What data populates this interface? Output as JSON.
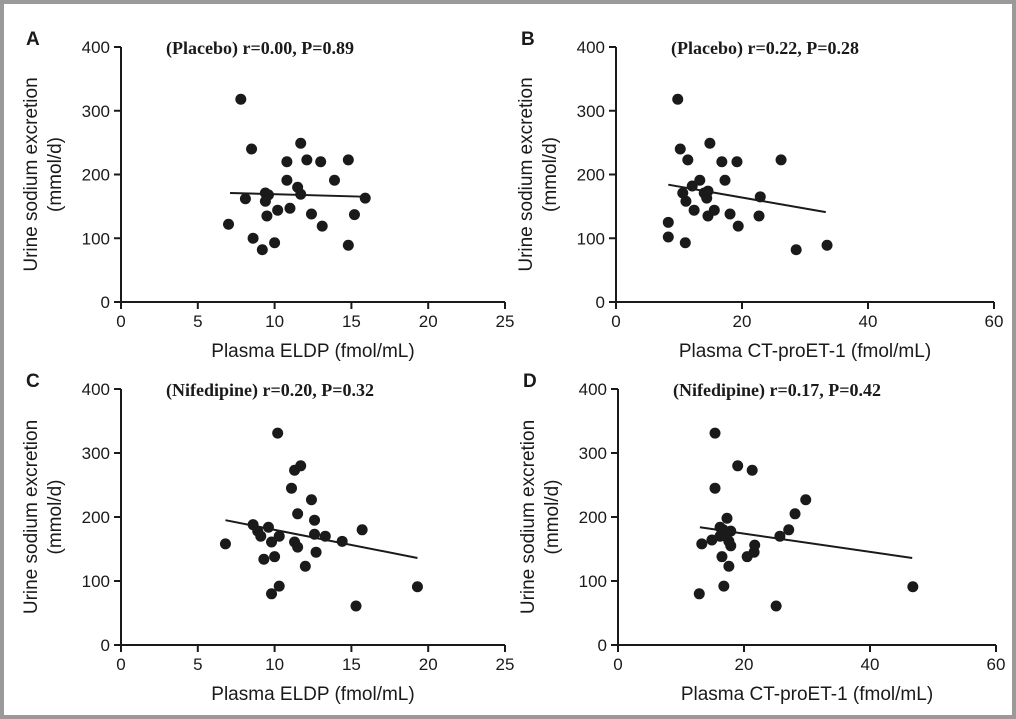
{
  "chart_data": [
    {
      "type": "scatter",
      "panel": "A",
      "annotation": "(Placebo) r=0.00, P=0.89",
      "xlabel": "Plasma ELDP (fmol/mL)",
      "ylabel": [
        "Urine sodium excretion",
        "(mmol/d)"
      ],
      "xlim": [
        0,
        25
      ],
      "ylim": [
        0,
        400
      ],
      "xticks": [
        0,
        5,
        10,
        15,
        20,
        25
      ],
      "yticks": [
        0,
        100,
        200,
        300,
        400
      ],
      "color": "#1a1a1a",
      "x": [
        7.8,
        7.0,
        8.1,
        8.5,
        8.6,
        9.2,
        9.4,
        9.4,
        9.5,
        9.6,
        10.0,
        10.2,
        10.8,
        10.8,
        11.0,
        11.5,
        11.7,
        11.7,
        12.1,
        12.4,
        13.0,
        13.1,
        13.9,
        14.8,
        14.8,
        15.2,
        15.9
      ],
      "values": [
        318,
        122,
        162,
        240,
        100,
        82,
        171,
        158,
        135,
        168,
        93,
        144,
        220,
        191,
        147,
        180,
        249,
        169,
        223,
        138,
        220,
        119,
        191,
        223,
        89,
        137,
        163
      ],
      "trend": {
        "x": [
          7.1,
          16.1
        ],
        "y": [
          171,
          165
        ]
      }
    },
    {
      "type": "scatter",
      "panel": "B",
      "annotation": "(Placebo) r=0.22, P=0.28",
      "xlabel": "Plasma CT-proET-1 (fmol/mL)",
      "ylabel": [
        "Urine sodium excretion",
        "(mmol/d)"
      ],
      "xlim": [
        0,
        60
      ],
      "ylim": [
        0,
        400
      ],
      "xticks": [
        0,
        20,
        40,
        60
      ],
      "yticks": [
        0,
        100,
        200,
        300,
        400
      ],
      "color": "#1a1a1a",
      "x": [
        9.8,
        8.3,
        8.3,
        10.2,
        11.0,
        11.4,
        10.6,
        11.1,
        12.1,
        12.4,
        13.3,
        14.0,
        14.4,
        14.6,
        14.6,
        14.9,
        15.6,
        16.8,
        17.3,
        18.1,
        19.2,
        19.4,
        22.7,
        22.9,
        26.2,
        28.6,
        33.5
      ],
      "values": [
        318,
        125,
        102,
        240,
        93,
        223,
        171,
        158,
        182,
        144,
        191,
        171,
        163,
        135,
        174,
        249,
        144,
        220,
        191,
        138,
        220,
        119,
        135,
        165,
        223,
        82,
        89
      ],
      "trend": {
        "x": [
          8.3,
          33.3
        ],
        "y": [
          184,
          141
        ]
      }
    },
    {
      "type": "scatter",
      "panel": "C",
      "annotation": "(Nifedipine) r=0.20, P=0.32",
      "xlabel": "Plasma ELDP (fmol/mL)",
      "ylabel": [
        "Urine sodium excretion",
        "(mmol/d)"
      ],
      "xlim": [
        0,
        25
      ],
      "ylim": [
        0,
        400
      ],
      "xticks": [
        0,
        5,
        10,
        15,
        20,
        25
      ],
      "yticks": [
        0,
        100,
        200,
        300,
        400
      ],
      "color": "#1a1a1a",
      "x": [
        6.8,
        8.6,
        8.9,
        9.1,
        9.3,
        9.6,
        9.8,
        9.8,
        10.0,
        10.3,
        10.3,
        10.2,
        11.1,
        11.3,
        11.5,
        11.7,
        11.3,
        11.5,
        12.0,
        12.4,
        12.6,
        12.6,
        12.7,
        13.3,
        14.4,
        15.3,
        15.7,
        19.3
      ],
      "values": [
        158,
        188,
        178,
        170,
        134,
        184,
        161,
        80,
        138,
        92,
        170,
        331,
        245,
        273,
        205,
        280,
        161,
        153,
        123,
        227,
        195,
        173,
        145,
        170,
        162,
        61,
        180,
        91
      ],
      "trend": {
        "x": [
          6.8,
          19.3
        ],
        "y": [
          195,
          136
        ]
      }
    },
    {
      "type": "scatter",
      "panel": "D",
      "annotation": "(Nifedipine) r=0.17, P=0.42",
      "xlabel": "Plasma CT-proET-1 (fmol/mL)",
      "ylabel": [
        "Urine sodium excretion",
        "(mmol/d)"
      ],
      "xlim": [
        0,
        60
      ],
      "ylim": [
        0,
        400
      ],
      "xticks": [
        0,
        20,
        40,
        60
      ],
      "yticks": [
        0,
        100,
        200,
        300,
        400
      ],
      "color": "#1a1a1a",
      "x": [
        12.9,
        13.3,
        14.9,
        15.4,
        15.4,
        16.2,
        16.2,
        16.5,
        16.7,
        16.8,
        17.1,
        17.3,
        17.6,
        17.6,
        17.9,
        17.9,
        19.0,
        20.5,
        21.3,
        21.6,
        21.7,
        25.7,
        25.1,
        27.1,
        28.1,
        29.8,
        46.8
      ],
      "values": [
        80,
        158,
        164,
        331,
        245,
        184,
        170,
        138,
        180,
        92,
        170,
        198,
        162,
        123,
        155,
        178,
        280,
        138,
        273,
        145,
        156,
        170,
        61,
        180,
        205,
        227,
        91
      ],
      "trend": {
        "x": [
          13,
          46.7
        ],
        "y": [
          184,
          136
        ]
      }
    }
  ]
}
